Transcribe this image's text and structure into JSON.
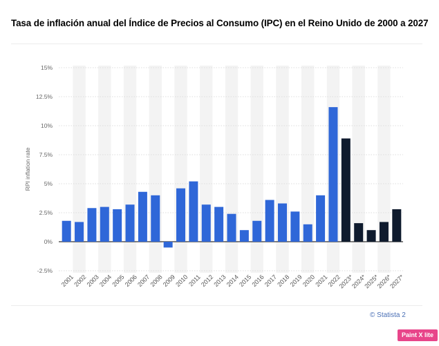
{
  "chart_data": {
    "type": "bar",
    "title": "Tasa de inflación anual del Índice de Precios al Consumo (IPC) en el Reino Unido de 2000 a 2027",
    "ylabel": "RPI inflation rate",
    "xlabel": "",
    "ylim": [
      -2.5,
      15
    ],
    "yticks": [
      "-2.5%",
      "0%",
      "2.5%",
      "5%",
      "7.5%",
      "10%",
      "12.5%",
      "15%"
    ],
    "categories": [
      "2001",
      "2002",
      "2003",
      "2004",
      "2005",
      "2006",
      "2007",
      "2008",
      "2009",
      "2010",
      "2011",
      "2012",
      "2013",
      "2014",
      "2015",
      "2016",
      "2017",
      "2018",
      "2019",
      "2020",
      "2021",
      "2022",
      "2023*",
      "2024*",
      "2025*",
      "2026*",
      "2027*"
    ],
    "values": [
      1.8,
      1.7,
      2.9,
      3.0,
      2.8,
      3.2,
      4.3,
      4.0,
      -0.5,
      4.6,
      5.2,
      3.2,
      3.0,
      2.4,
      1.0,
      1.8,
      3.6,
      3.3,
      2.6,
      1.5,
      4.0,
      11.6,
      8.9,
      1.6,
      1.0,
      1.7,
      2.8
    ],
    "forecast": [
      false,
      false,
      false,
      false,
      false,
      false,
      false,
      false,
      false,
      false,
      false,
      false,
      false,
      false,
      false,
      false,
      false,
      false,
      false,
      false,
      false,
      false,
      true,
      true,
      true,
      true,
      true
    ],
    "colors": {
      "actual": "#2f67d8",
      "forecast": "#0f1b2e",
      "band": "#f3f3f3",
      "grid": "#dcdcdc",
      "zero": "#333333"
    },
    "grid": true,
    "legend": "none"
  },
  "footer": {
    "credit": "© Statista 2",
    "badge": "Paint X lite"
  }
}
